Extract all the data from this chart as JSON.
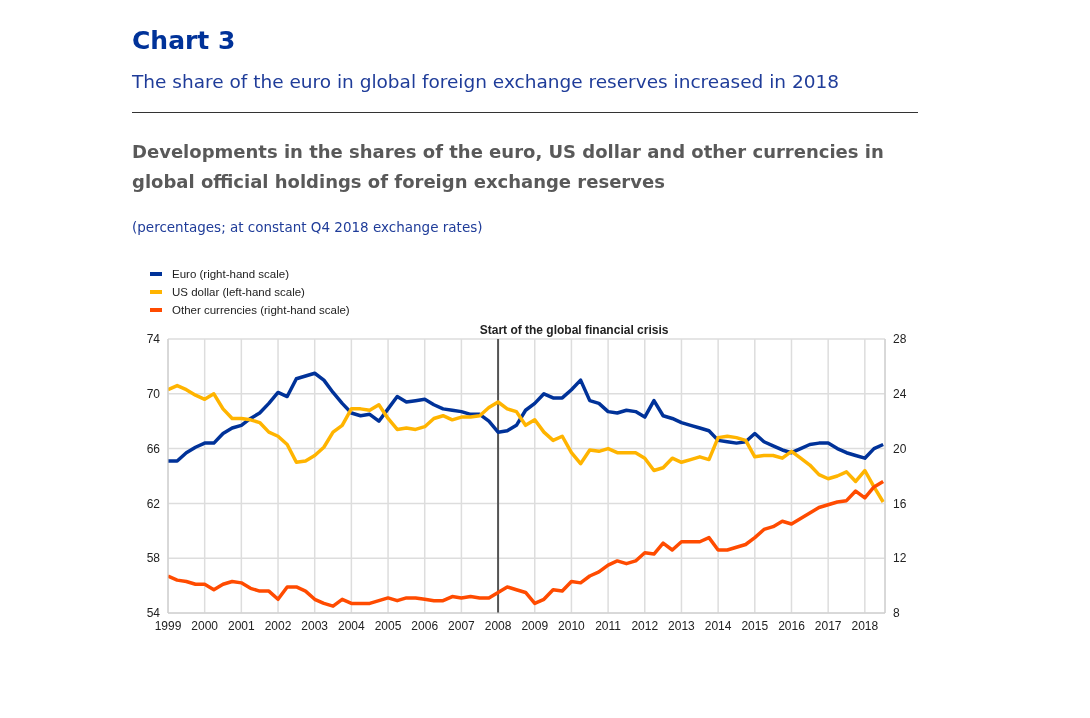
{
  "chart_data": {
    "type": "line",
    "title": "Chart 3",
    "subtitle": "The share of the euro in global foreign exchange reserves increased in 2018",
    "annotations": [
      "Developments in the shares of the euro, US dollar and other currencies in global official holdings of foreign exchange reserves",
      "(percentages; at constant Q4 2018 exchange rates)"
    ],
    "x": [
      1999,
      1999.25,
      1999.5,
      1999.75,
      2000,
      2000.25,
      2000.5,
      2000.75,
      2001,
      2001.25,
      2001.5,
      2001.75,
      2002,
      2002.25,
      2002.5,
      2002.75,
      2003,
      2003.25,
      2003.5,
      2003.75,
      2004,
      2004.25,
      2004.5,
      2004.75,
      2005,
      2005.25,
      2005.5,
      2005.75,
      2006,
      2006.25,
      2006.5,
      2006.75,
      2007,
      2007.25,
      2007.5,
      2007.75,
      2008,
      2008.25,
      2008.5,
      2008.75,
      2009,
      2009.25,
      2009.5,
      2009.75,
      2010,
      2010.25,
      2010.5,
      2010.75,
      2011,
      2011.25,
      2011.5,
      2011.75,
      2012,
      2012.25,
      2012.5,
      2012.75,
      2013,
      2013.25,
      2013.5,
      2013.75,
      2014,
      2014.25,
      2014.5,
      2014.75,
      2015,
      2015.25,
      2015.5,
      2015.75,
      2016,
      2016.25,
      2016.5,
      2016.75,
      2017,
      2017.25,
      2017.5,
      2017.75,
      2018,
      2018.25,
      2018.5
    ],
    "series": [
      {
        "name": "Euro (right-hand scale)",
        "color": "#003299",
        "axis": "y2",
        "values": [
          19.1,
          19.1,
          19.7,
          20.1,
          20.4,
          20.4,
          21.1,
          21.5,
          21.7,
          22.2,
          22.6,
          23.3,
          24.1,
          23.8,
          25.1,
          25.3,
          25.5,
          25.0,
          24.1,
          23.3,
          22.6,
          22.4,
          22.5,
          22.0,
          22.9,
          23.8,
          23.4,
          23.5,
          23.6,
          23.2,
          22.9,
          22.8,
          22.7,
          22.5,
          22.5,
          22.0,
          21.2,
          21.3,
          21.7,
          22.8,
          23.3,
          24.0,
          23.7,
          23.7,
          24.3,
          25.0,
          23.5,
          23.3,
          22.7,
          22.6,
          22.8,
          22.7,
          22.3,
          23.5,
          22.4,
          22.2,
          21.9,
          21.7,
          21.5,
          21.3,
          20.6,
          20.5,
          20.4,
          20.5,
          21.1,
          20.5,
          20.2,
          19.9,
          19.7,
          20.0,
          20.3,
          20.4,
          20.4,
          20.0,
          19.7,
          19.5,
          19.3,
          20.0,
          20.3
        ]
      },
      {
        "name": "US dollar (left-hand scale)",
        "color": "#ffb400",
        "values": [
          70.3,
          70.6,
          70.3,
          69.9,
          69.6,
          70.0,
          68.9,
          68.2,
          68.2,
          68.1,
          67.9,
          67.2,
          66.9,
          66.3,
          65.0,
          65.1,
          65.5,
          66.1,
          67.2,
          67.7,
          68.9,
          68.9,
          68.8,
          69.2,
          68.2,
          67.4,
          67.5,
          67.4,
          67.6,
          68.2,
          68.4,
          68.1,
          68.3,
          68.3,
          68.4,
          69.0,
          69.4,
          68.9,
          68.7,
          67.7,
          68.1,
          67.2,
          66.6,
          66.9,
          65.7,
          64.9,
          65.9,
          65.8,
          66.0,
          65.7,
          65.7,
          65.7,
          65.3,
          64.4,
          64.6,
          65.3,
          65.0,
          65.2,
          65.4,
          65.2,
          66.8,
          66.9,
          66.8,
          66.6,
          65.4,
          65.5,
          65.5,
          65.3,
          65.8,
          65.3,
          64.8,
          64.1,
          63.8,
          64.0,
          64.3,
          63.6,
          64.4,
          63.2,
          62.1
        ]
      },
      {
        "name": "Other currencies (right-hand scale)",
        "color": "#ff4b00",
        "axis": "y2",
        "values": [
          10.7,
          10.4,
          10.3,
          10.1,
          10.1,
          9.7,
          10.1,
          10.3,
          10.2,
          9.8,
          9.6,
          9.6,
          9.0,
          9.9,
          9.9,
          9.6,
          9.0,
          8.7,
          8.5,
          9.0,
          8.7,
          8.7,
          8.7,
          8.9,
          9.1,
          8.9,
          9.1,
          9.1,
          9.0,
          8.9,
          8.9,
          9.2,
          9.1,
          9.2,
          9.1,
          9.1,
          9.5,
          9.9,
          9.7,
          9.5,
          8.7,
          9.0,
          9.7,
          9.6,
          10.3,
          10.2,
          10.7,
          11.0,
          11.5,
          11.8,
          11.6,
          11.8,
          12.4,
          12.3,
          13.1,
          12.6,
          13.2,
          13.2,
          13.2,
          13.5,
          12.6,
          12.6,
          12.8,
          13.0,
          13.5,
          14.1,
          14.3,
          14.7,
          14.5,
          14.9,
          15.3,
          15.7,
          15.9,
          16.1,
          16.2,
          16.9,
          16.4,
          17.2,
          17.6
        ]
      }
    ],
    "xlim": [
      1999,
      2018.55
    ],
    "xticks": [
      1999,
      2000,
      2001,
      2002,
      2003,
      2004,
      2005,
      2006,
      2007,
      2008,
      2009,
      2010,
      2011,
      2012,
      2013,
      2014,
      2015,
      2016,
      2017,
      2018
    ],
    "ylim": [
      54,
      74
    ],
    "yticks": [
      54,
      58,
      62,
      66,
      70,
      74
    ],
    "y2lim": [
      8,
      28
    ],
    "y2ticks": [
      8,
      12,
      16,
      20,
      24,
      28
    ],
    "ref_lines": [
      {
        "axis": "x",
        "value": 2008,
        "label": "Start of the global financial crisis",
        "color": "#555555"
      }
    ],
    "grid": true,
    "legend": "top left",
    "marker": "none",
    "line_style": "solid"
  }
}
